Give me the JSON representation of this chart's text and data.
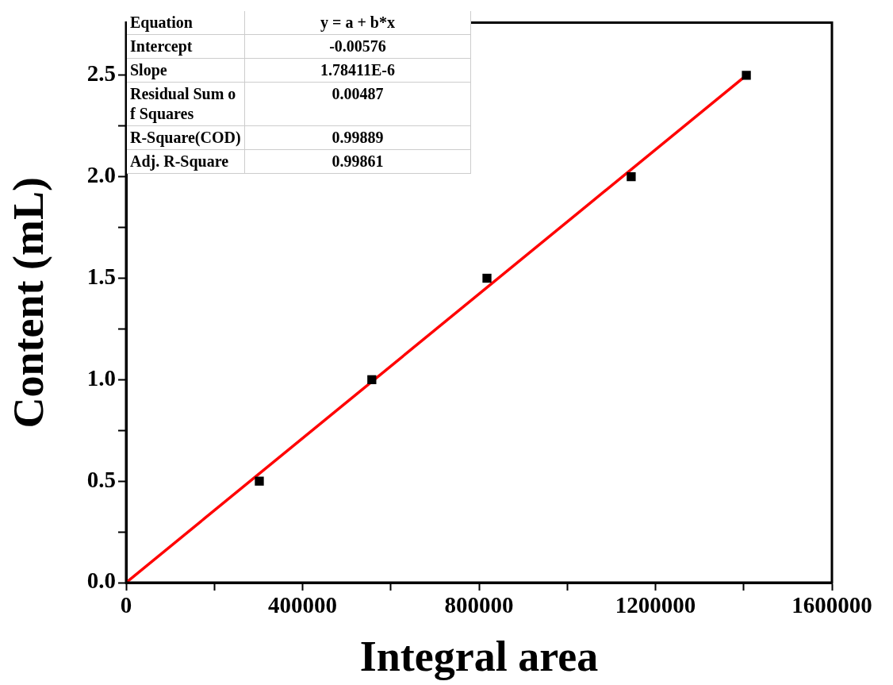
{
  "chart_data": {
    "type": "scatter",
    "xlabel": "Integral area",
    "ylabel": "Content (mL)",
    "xlim": [
      0,
      1600000
    ],
    "ylim": [
      0,
      2.76
    ],
    "xticks": [
      0,
      {
        "value": 200000,
        "label": null
      },
      400000,
      {
        "value": 600000,
        "label": null
      },
      800000,
      {
        "value": 1000000,
        "label": null
      },
      1200000,
      {
        "value": 1400000,
        "label": null
      },
      1600000
    ],
    "yticks": [
      {
        "value": 0,
        "label": "0.0"
      },
      {
        "value": 0.25,
        "label": null
      },
      {
        "value": 0.5,
        "label": "0.5"
      },
      {
        "value": 0.75,
        "label": null
      },
      {
        "value": 1,
        "label": "1.0"
      },
      {
        "value": 1.25,
        "label": null
      },
      {
        "value": 1.5,
        "label": "1.5"
      },
      {
        "value": 1.75,
        "label": null
      },
      {
        "value": 2,
        "label": "2.0"
      },
      {
        "value": 2.25,
        "label": null
      },
      {
        "value": 2.5,
        "label": "2.5"
      }
    ],
    "grid": false,
    "legend": false,
    "series": [
      {
        "type": "scatter",
        "color": "#000000",
        "marker": "square",
        "x": [
          302000,
          557000,
          818000,
          1145000,
          1406000
        ],
        "values": [
          0.5,
          1.0,
          1.5,
          2.0,
          2.5
        ]
      },
      {
        "type": "line",
        "color": "#ff0000",
        "marker": "none",
        "line_style": "solid",
        "x": [
          0,
          1406000
        ],
        "values": [
          0,
          2.5
        ]
      }
    ],
    "annotations": [
      "Equation",
      "y = a + b*x",
      "Intercept",
      "-0.00576",
      "Slope",
      "1.78411E-6",
      "Residual Sum of Squares",
      "0.00487",
      "R-Square(COD)",
      "0.99889",
      "Adj. R-Square",
      "0.99861"
    ]
  }
}
